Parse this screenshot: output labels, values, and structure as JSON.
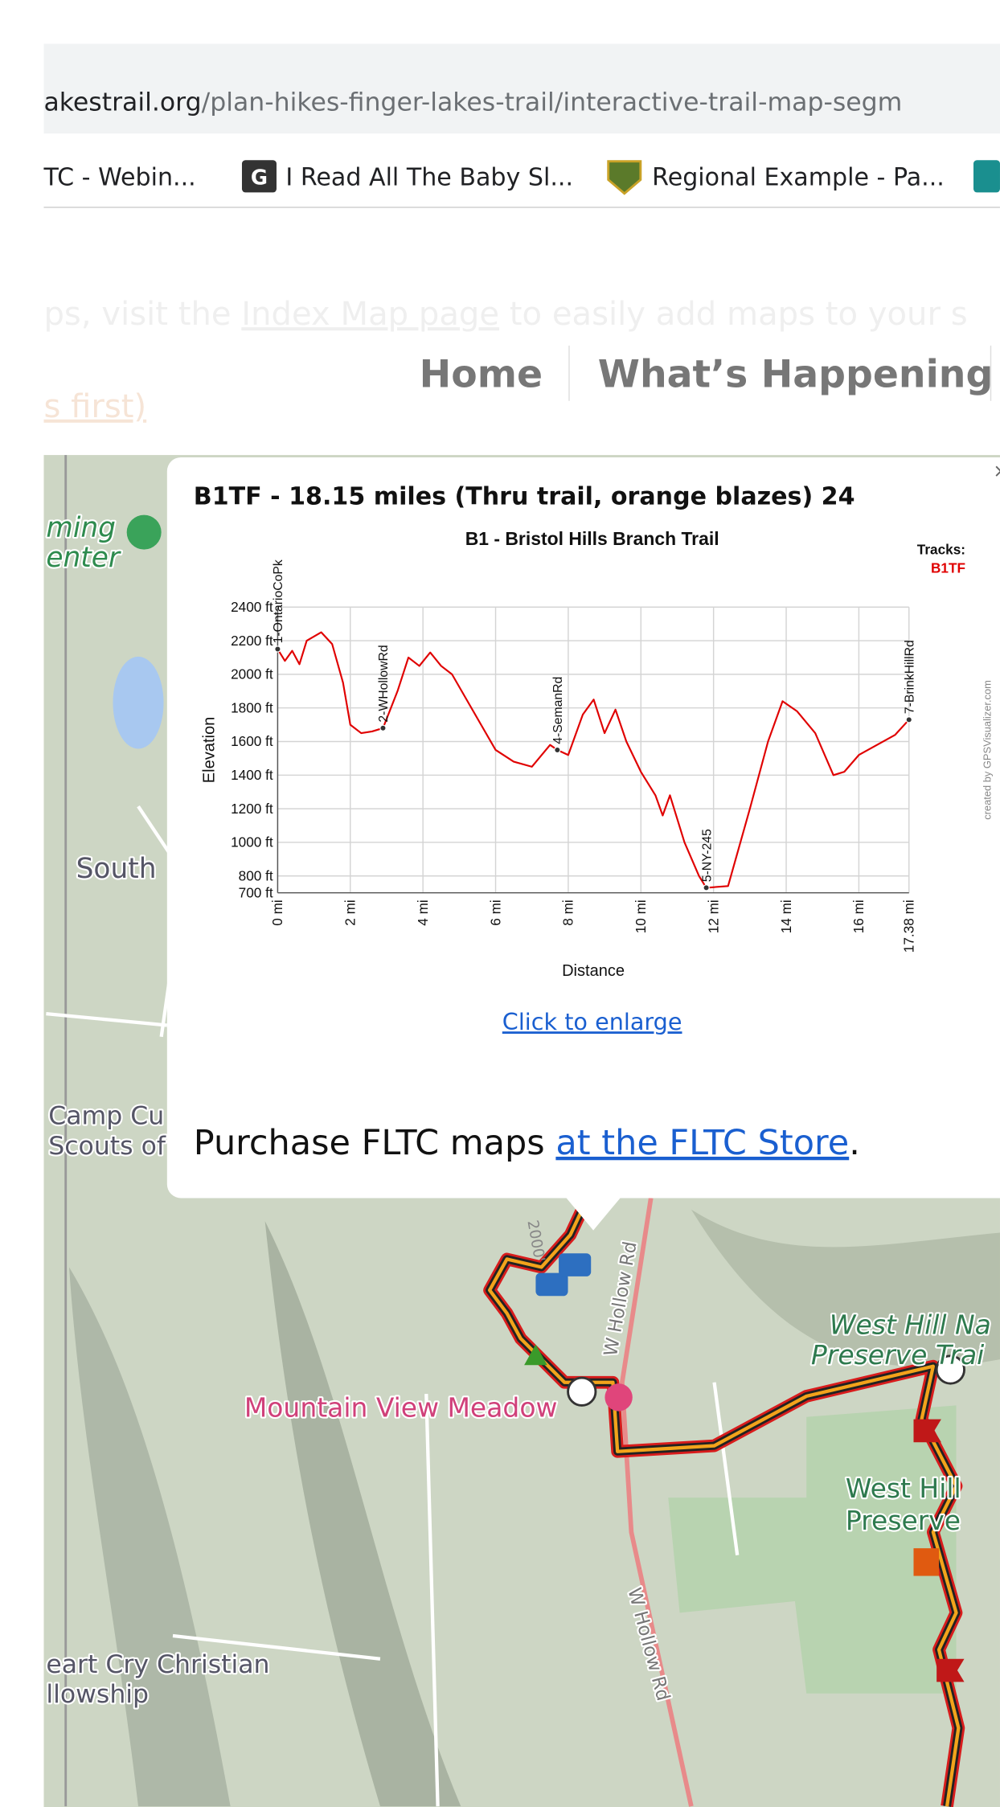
{
  "browser": {
    "url_domain": "akestrail.org",
    "url_path": "/plan-hikes-finger-lakes-trail/interactive-trail-map-segm",
    "bookmarks": [
      "TC - Webin...",
      "I Read All The Baby Sl...",
      "Regional Example - Pa..."
    ]
  },
  "page": {
    "notice_start": "ps, visit the ",
    "notice_link": "Index Map page",
    "notice_end": " to easily add maps to your s",
    "nav": [
      "Home",
      "What’s Happening"
    ],
    "faded_link": "s first)"
  },
  "popup": {
    "title": "B1TF - 18.15 miles (Thru trail, orange blazes) 24",
    "enlarge_link": "Click to enlarge",
    "purchase": "Purchase FLTC maps ",
    "store_link": "at the FLTC Store",
    "period": "."
  },
  "chart_data": {
    "type": "line",
    "title": "B1 - Bristol Hills Branch Trail",
    "legend_title": "Tracks:",
    "x_label": "Distance",
    "y_label": "Elevation",
    "credit": "created by GPSVisualizer.com",
    "grid": true,
    "xlim": [
      0,
      17.38
    ],
    "ylim": [
      700,
      2400
    ],
    "xticks": [
      {
        "value": 0,
        "label": "0 mi"
      },
      {
        "value": 2,
        "label": "2 mi"
      },
      {
        "value": 4,
        "label": "4 mi"
      },
      {
        "value": 6,
        "label": "6 mi"
      },
      {
        "value": 8,
        "label": "8 mi"
      },
      {
        "value": 10,
        "label": "10 mi"
      },
      {
        "value": 12,
        "label": "12 mi"
      },
      {
        "value": 14,
        "label": "14 mi"
      },
      {
        "value": 16,
        "label": "16 mi"
      },
      {
        "value": 17.38,
        "label": "17.38 mi"
      }
    ],
    "yticks": [
      {
        "value": 700,
        "label": "700 ft"
      },
      {
        "value": 800,
        "label": "800 ft"
      },
      {
        "value": 1000,
        "label": "1000 ft"
      },
      {
        "value": 1200,
        "label": "1200 ft"
      },
      {
        "value": 1400,
        "label": "1400 ft"
      },
      {
        "value": 1600,
        "label": "1600 ft"
      },
      {
        "value": 1800,
        "label": "1800 ft"
      },
      {
        "value": 2000,
        "label": "2000 ft"
      },
      {
        "value": 2200,
        "label": "2200 ft"
      },
      {
        "value": 2400,
        "label": "2400 ft"
      }
    ],
    "series": [
      {
        "name": "B1TF",
        "color": "#e00000",
        "x": [
          0,
          0.2,
          0.4,
          0.6,
          0.8,
          1.2,
          1.5,
          1.8,
          2.0,
          2.3,
          2.6,
          2.9,
          3.3,
          3.6,
          3.9,
          4.2,
          4.5,
          4.8,
          5.2,
          5.6,
          6.0,
          6.5,
          7.0,
          7.5,
          7.7,
          8.0,
          8.4,
          8.7,
          9.0,
          9.3,
          9.6,
          10.0,
          10.4,
          10.6,
          10.8,
          11.2,
          11.6,
          11.8,
          12.4,
          13.0,
          13.5,
          13.9,
          14.3,
          14.8,
          15.3,
          15.6,
          16.0,
          16.5,
          17.0,
          17.38
        ],
        "values": [
          2150,
          2080,
          2140,
          2060,
          2200,
          2250,
          2180,
          1950,
          1700,
          1650,
          1660,
          1680,
          1900,
          2100,
          2050,
          2130,
          2050,
          2000,
          1850,
          1700,
          1550,
          1480,
          1450,
          1580,
          1550,
          1520,
          1760,
          1850,
          1650,
          1790,
          1600,
          1420,
          1280,
          1160,
          1280,
          1000,
          800,
          730,
          740,
          1200,
          1600,
          1840,
          1780,
          1650,
          1400,
          1420,
          1520,
          1580,
          1640,
          1730
        ]
      }
    ],
    "waypoints": {
      "labels": [
        "1-OntarioCoPk",
        "2-WHollowRd",
        "4-SemanRd",
        "5-NY-245",
        "7-BrinkHillRd"
      ],
      "x": [
        0,
        2.9,
        7.7,
        11.8,
        17.38
      ],
      "values": [
        2150,
        1680,
        1550,
        730,
        1730
      ]
    }
  },
  "map": {
    "labels": [
      "ming",
      "enter",
      "South",
      "Camp Cu",
      "Scouts of",
      "Mountain View Meadow",
      "West Hill Na",
      "Preserve Trai",
      "West Hill",
      "Preserve",
      "eart Cry Christian",
      "llowship",
      "W Hollow Rd",
      "W Hollow Rd",
      "2000'"
    ]
  }
}
